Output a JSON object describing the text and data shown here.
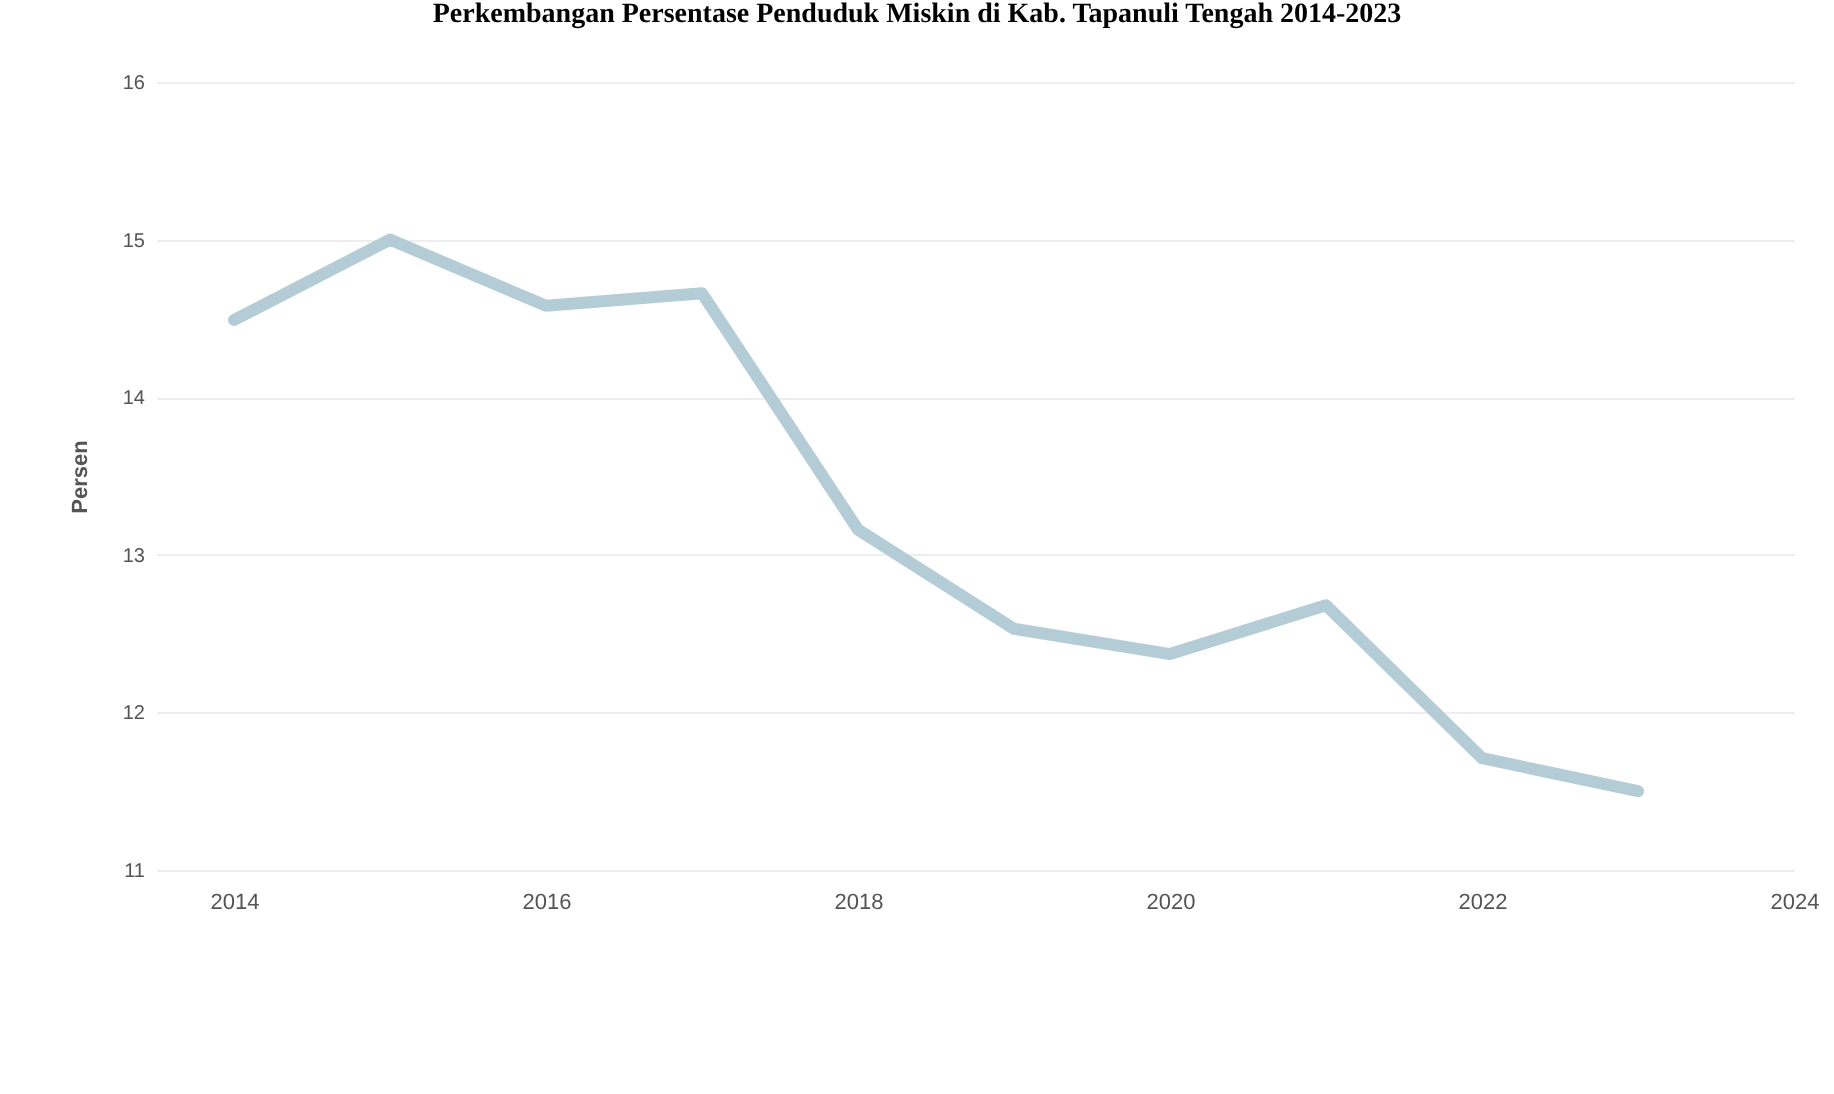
{
  "chart_data": {
    "type": "line",
    "title": "Perkembangan Persentase Penduduk Miskin di Kab. Tapanuli Tengah 2014-2023",
    "ylabel": "Persen",
    "x": [
      2014,
      2015,
      2016,
      2017,
      2018,
      2019,
      2020,
      2021,
      2022,
      2023
    ],
    "values": [
      14.49,
      15.0,
      14.58,
      14.66,
      13.16,
      12.53,
      12.37,
      12.68,
      11.71,
      11.5
    ],
    "color": "#b3ccd6",
    "line_style": "solid",
    "xlim": [
      2013.5,
      2024
    ],
    "xticks": [
      2014,
      2016,
      2018,
      2020,
      2022,
      2024
    ],
    "ylim": [
      11,
      16
    ],
    "yticks": [
      11,
      12,
      13,
      14,
      15,
      16
    ],
    "grid": "y"
  }
}
